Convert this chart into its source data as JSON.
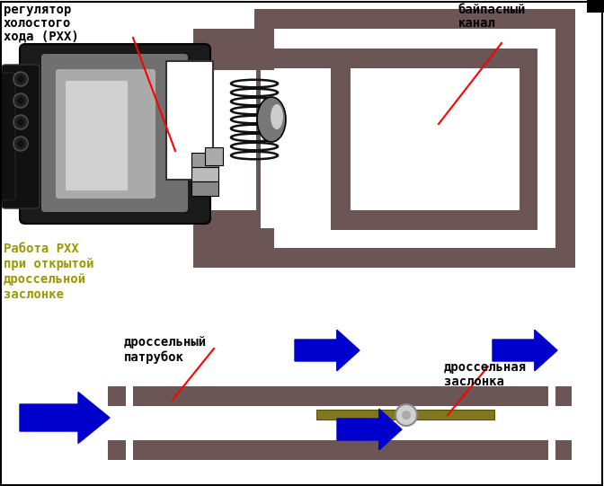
{
  "bg_color": "#ffffff",
  "brown": "#6b5555",
  "black": "#000000",
  "white": "#ffffff",
  "blue_arrow": "#0000cc",
  "red_line": "#ff0000",
  "yellow_text": "#999900",
  "gray_dark": "#1a1a1a",
  "gray_mid": "#888888",
  "gray_light": "#cccccc",
  "olive": "#807820",
  "label_rxh_1": "регулятор",
  "label_rxh_2": "холостого",
  "label_rxh_3": "хода (РХХ)",
  "label_bypass_1": "байпасный",
  "label_bypass_2": "канал",
  "label_work_1": "Работа РХХ",
  "label_work_2": "при открытой",
  "label_work_3": "дроссельной",
  "label_work_4": "заслонке",
  "label_tube_1": "дроссельный",
  "label_tube_2": "патрубок",
  "label_flap_1": "дроссельная",
  "label_flap_2": "заслонка"
}
